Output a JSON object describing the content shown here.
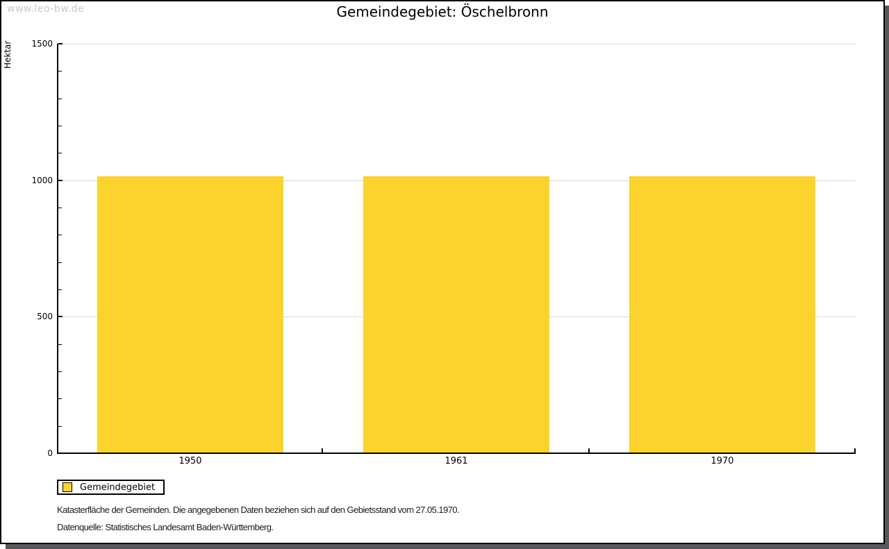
{
  "watermark": "www.leo-bw.de",
  "chart_data": {
    "type": "bar",
    "title": "Gemeindegebiet: Öschelbronn",
    "xlabel": "",
    "ylabel": "Hektar",
    "categories": [
      "1950",
      "1961",
      "1970"
    ],
    "series": [
      {
        "name": "Gemeindegebiet",
        "values": [
          1015,
          1015,
          1015
        ],
        "color": "#FCD32D"
      }
    ],
    "ylim": [
      0,
      1500
    ],
    "ytick_major_step": 500,
    "ytick_minor_step": 100,
    "ytick_labels": [
      "0",
      "500",
      "1000",
      "1500"
    ],
    "grid": "horizontal",
    "legend_position": "bottom-left"
  },
  "legend": {
    "label": "Gemeindegebiet"
  },
  "notes": [
    "Katasterfläche der Gemeinden. Die angegebenen Daten beziehen sich auf den Gebietsstand vom 27.05.1970.",
    "Datenquelle: Statistisches Landesamt Baden-Württemberg."
  ],
  "colors": {
    "bar": "#FCD32D",
    "grid": "#D8D8D8",
    "axis": "#000000",
    "frame_shadow": "#58585A",
    "watermark": "#C9C9C9"
  }
}
